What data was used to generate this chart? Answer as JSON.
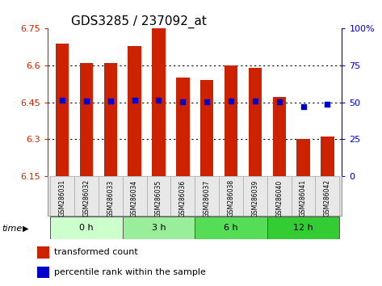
{
  "title": "GDS3285 / 237092_at",
  "samples": [
    "GSM286031",
    "GSM286032",
    "GSM286033",
    "GSM286034",
    "GSM286035",
    "GSM286036",
    "GSM286037",
    "GSM286038",
    "GSM286039",
    "GSM286040",
    "GSM286041",
    "GSM286042"
  ],
  "bar_tops": [
    6.69,
    6.61,
    6.61,
    6.68,
    6.75,
    6.55,
    6.54,
    6.6,
    6.59,
    6.47,
    6.3,
    6.31
  ],
  "bar_bottom": 6.15,
  "blue_dots_y": [
    6.46,
    6.455,
    6.455,
    6.46,
    6.46,
    6.452,
    6.452,
    6.455,
    6.455,
    6.452,
    6.432,
    6.442
  ],
  "ylim": [
    6.15,
    6.75
  ],
  "yticks": [
    6.15,
    6.3,
    6.45,
    6.6,
    6.75
  ],
  "ytick_labels": [
    "6.15",
    "6.3",
    "6.45",
    "6.6",
    "6.75"
  ],
  "right_yticks_pct": [
    0,
    25,
    50,
    75,
    100
  ],
  "right_ytick_labels": [
    "0",
    "25",
    "50",
    "75",
    "100%"
  ],
  "bar_color": "#cc2200",
  "dot_color": "#0000cc",
  "bg_color": "#ffffff",
  "time_groups": [
    {
      "label": "0 h",
      "samples": [
        0,
        1,
        2
      ],
      "color": "#ccffcc"
    },
    {
      "label": "3 h",
      "samples": [
        3,
        4,
        5
      ],
      "color": "#99ee99"
    },
    {
      "label": "6 h",
      "samples": [
        6,
        7,
        8
      ],
      "color": "#55dd55"
    },
    {
      "label": "12 h",
      "samples": [
        9,
        10,
        11
      ],
      "color": "#33cc33"
    }
  ],
  "legend_red_label": "transformed count",
  "legend_blue_label": "percentile rank within the sample",
  "left_axis_color": "#cc2200",
  "right_axis_color": "#0000cc"
}
